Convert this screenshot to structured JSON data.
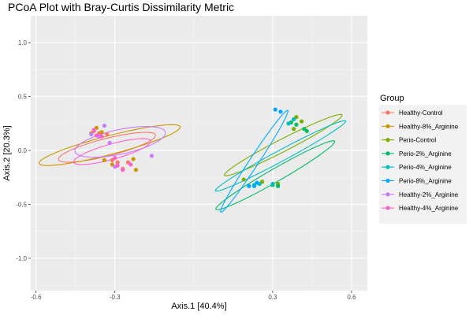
{
  "chart_data": {
    "type": "scatter",
    "title": "PCoA Plot with Bray-Curtis Dissimilarity Metric",
    "xlabel": "Axis.1   [40.4%]",
    "ylabel": "Axis.2   [20.3%]",
    "xlim": [
      -0.62,
      0.66
    ],
    "ylim": [
      -1.3,
      1.25
    ],
    "xticks": [
      -0.6,
      -0.3,
      0.3,
      0.6
    ],
    "xtick_labels": [
      "-0.6",
      "-0.3",
      "0.3",
      "0.6"
    ],
    "yticks": [
      -1.0,
      -0.5,
      0.0,
      0.5,
      1.0
    ],
    "ytick_labels": [
      "-1.0",
      "-0.5",
      "0.0",
      "0.5",
      "1.0"
    ],
    "grid": true,
    "legend": {
      "title": "Group",
      "position": "right"
    },
    "series": [
      {
        "name": "Healthy-Control",
        "color": "#F8766D",
        "points": [
          [
            -0.38,
            0.18
          ],
          [
            -0.36,
            0.16
          ],
          [
            -0.33,
            0.15
          ],
          [
            -0.31,
            -0.09
          ],
          [
            -0.29,
            -0.11
          ],
          [
            -0.27,
            -0.17
          ],
          [
            -0.25,
            -0.11
          ]
        ],
        "ellipse": {
          "cx": -0.33,
          "cy": 0.03,
          "rx": 0.22,
          "ry": 0.07,
          "angle_deg": 35
        }
      },
      {
        "name": "Healthy-8%_Arginine",
        "color": "#CD9600",
        "points": [
          [
            -0.39,
            0.16
          ],
          [
            -0.37,
            0.21
          ],
          [
            -0.35,
            0.17
          ],
          [
            -0.34,
            -0.09
          ],
          [
            -0.31,
            -0.13
          ],
          [
            -0.23,
            -0.08
          ],
          [
            -0.22,
            -0.18
          ]
        ],
        "ellipse": {
          "cx": -0.32,
          "cy": 0.05,
          "rx": 0.32,
          "ry": 0.075,
          "angle_deg": 34
        }
      },
      {
        "name": "Perio-Control",
        "color": "#7CAE00",
        "points": [
          [
            0.19,
            -0.27
          ],
          [
            0.26,
            -0.29
          ],
          [
            0.32,
            -0.31
          ],
          [
            0.38,
            0.2
          ],
          [
            0.39,
            0.31
          ],
          [
            0.41,
            0.27
          ]
        ],
        "ellipse": {
          "cx": 0.34,
          "cy": 0.05,
          "rx": 0.36,
          "ry": 0.04,
          "angle_deg": 52
        }
      },
      {
        "name": "Perio-2%_Arginine",
        "color": "#00BE67",
        "points": [
          [
            0.3,
            -0.32
          ],
          [
            0.32,
            -0.33
          ],
          [
            0.37,
            0.26
          ],
          [
            0.42,
            0.2
          ],
          [
            0.43,
            0.18
          ],
          [
            0.39,
            0.24
          ]
        ],
        "ellipse": {
          "cx": 0.31,
          "cy": -0.23,
          "rx": 0.39,
          "ry": 0.04,
          "angle_deg": 55
        }
      },
      {
        "name": "Perio-4%_Arginine",
        "color": "#00BFC4",
        "points": [
          [
            0.23,
            -0.32
          ],
          [
            0.25,
            -0.31
          ],
          [
            0.3,
            -0.31
          ],
          [
            0.36,
            0.25
          ],
          [
            0.38,
            0.29
          ]
        ],
        "ellipse": {
          "cx": 0.33,
          "cy": -0.05,
          "rx": 0.41,
          "ry": 0.035,
          "angle_deg": 53
        }
      },
      {
        "name": "Perio-8%_Arginine",
        "color": "#00A9FF",
        "points": [
          [
            0.21,
            -0.33
          ],
          [
            0.23,
            -0.33
          ],
          [
            0.24,
            -0.3
          ],
          [
            0.31,
            0.38
          ],
          [
            0.33,
            0.36
          ]
        ],
        "ellipse": {
          "cx": 0.23,
          "cy": -0.1,
          "rx": 0.49,
          "ry": 0.02,
          "angle_deg": 75
        }
      },
      {
        "name": "Healthy-2%_Arginine",
        "color": "#C77CFF",
        "points": [
          [
            -0.39,
            0.15
          ],
          [
            -0.36,
            0.13
          ],
          [
            -0.34,
            0.23
          ],
          [
            -0.32,
            0.07
          ],
          [
            -0.3,
            -0.15
          ],
          [
            -0.16,
            -0.05
          ]
        ],
        "ellipse": {
          "cx": -0.28,
          "cy": 0.08,
          "rx": 0.2,
          "ry": 0.1,
          "angle_deg": 36
        }
      },
      {
        "name": "Healthy-4%_Arginine",
        "color": "#FF61CC",
        "points": [
          [
            -0.38,
            0.19
          ],
          [
            -0.37,
            0.14
          ],
          [
            -0.35,
            0.13
          ],
          [
            -0.3,
            -0.07
          ],
          [
            -0.27,
            -0.18
          ],
          [
            -0.24,
            -0.13
          ],
          [
            -0.29,
            -0.14
          ]
        ],
        "ellipse": {
          "cx": -0.31,
          "cy": -0.01,
          "rx": 0.18,
          "ry": 0.06,
          "angle_deg": 38
        }
      }
    ]
  }
}
